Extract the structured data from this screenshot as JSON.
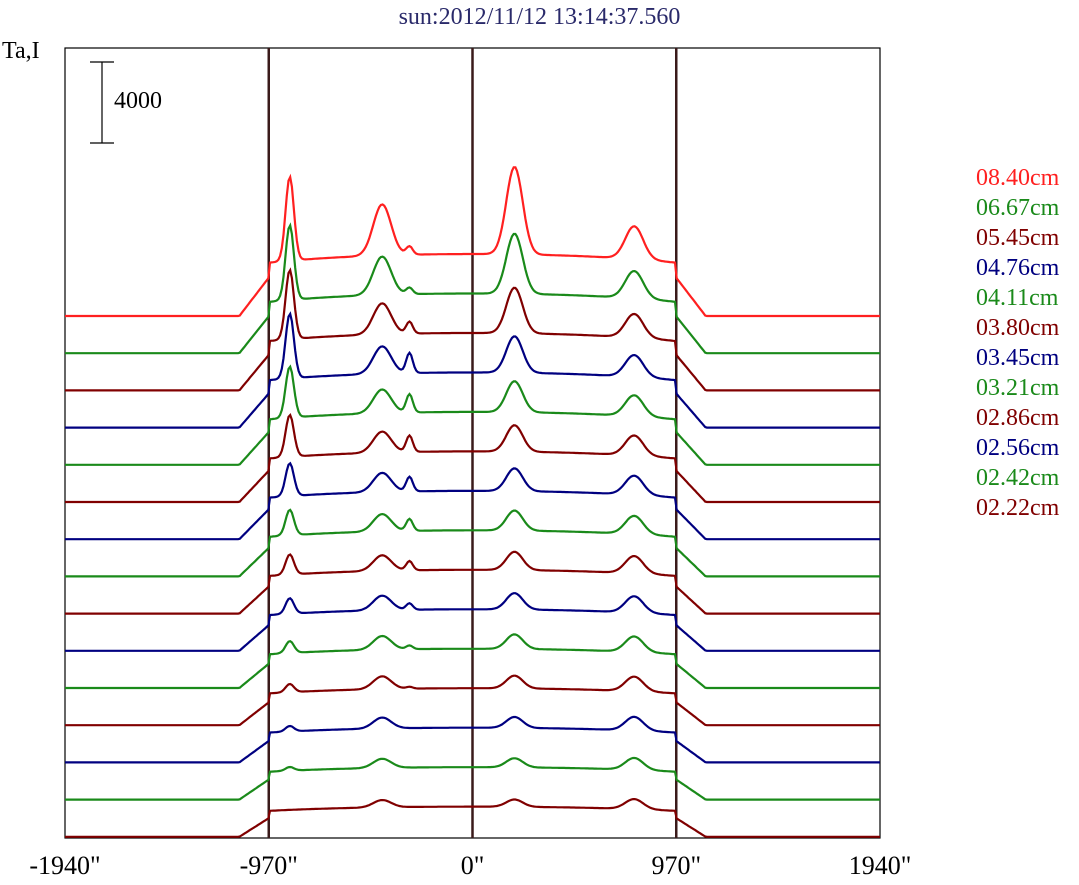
{
  "chart_data": {
    "type": "line",
    "title": "sun:2012/11/12 13:14:37.560",
    "ylabel": "Ta,I",
    "scale_bar_label": "4000",
    "xlim": [
      -1940,
      1940
    ],
    "x_tick_labels": [
      "-1940\"",
      "-970\"",
      "0\"",
      "970\"",
      "1940\""
    ],
    "x_ticks": [
      -1940,
      -970,
      0,
      970,
      1940
    ],
    "vertical_lines": [
      -970,
      0,
      970
    ],
    "legend": [
      {
        "label": "08.40cm",
        "color": "#ff2020"
      },
      {
        "label": "06.67cm",
        "color": "#1a8a1a"
      },
      {
        "label": "05.45cm",
        "color": "#800000"
      },
      {
        "label": "04.76cm",
        "color": "#000080"
      },
      {
        "label": "04.11cm",
        "color": "#1a8a1a"
      },
      {
        "label": "03.80cm",
        "color": "#800000"
      },
      {
        "label": "03.45cm",
        "color": "#000080"
      },
      {
        "label": "03.21cm",
        "color": "#1a8a1a"
      },
      {
        "label": "02.86cm",
        "color": "#800000"
      },
      {
        "label": "02.56cm",
        "color": "#000080"
      },
      {
        "label": "02.42cm",
        "color": "#1a8a1a"
      },
      {
        "label": "02.22cm",
        "color": "#800000"
      }
    ],
    "series_colors": [
      "#ff2020",
      "#1a8a1a",
      "#800000",
      "#000080",
      "#1a8a1a",
      "#800000",
      "#000080",
      "#1a8a1a",
      "#800000",
      "#000080",
      "#1a8a1a",
      "#800000",
      "#000080",
      "#1a8a1a",
      "#800000"
    ],
    "profile_peak_x": [
      -870,
      -430,
      -300,
      200,
      770
    ],
    "series_peak_amplitudes": [
      [
        4600,
        2800,
        450,
        4800,
        1800
      ],
      [
        4100,
        2100,
        350,
        3300,
        1500
      ],
      [
        3800,
        1700,
        650,
        2500,
        1300
      ],
      [
        3550,
        1500,
        1100,
        2000,
        1200
      ],
      [
        2800,
        1300,
        1000,
        1700,
        1150
      ],
      [
        2300,
        1150,
        900,
        1450,
        1100
      ],
      [
        1800,
        1050,
        800,
        1250,
        1050
      ],
      [
        1400,
        950,
        650,
        1100,
        1000
      ],
      [
        1100,
        850,
        500,
        1000,
        950
      ],
      [
        850,
        800,
        350,
        900,
        900
      ],
      [
        650,
        750,
        200,
        800,
        850
      ],
      [
        450,
        700,
        100,
        700,
        800
      ],
      [
        300,
        600,
        0,
        600,
        750
      ],
      [
        200,
        500,
        0,
        500,
        650
      ],
      [
        0,
        400,
        0,
        400,
        550
      ]
    ]
  }
}
